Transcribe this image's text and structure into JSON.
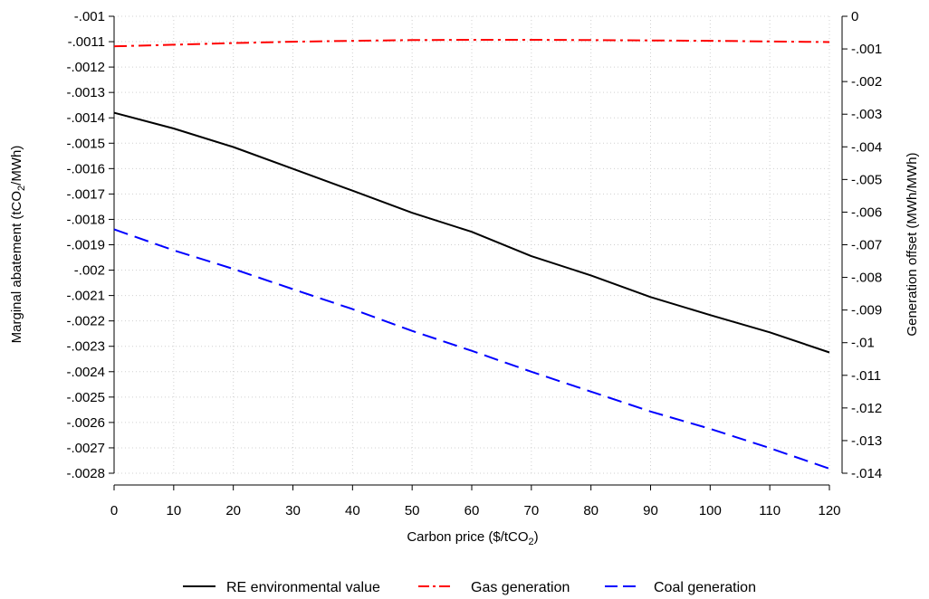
{
  "chart_data": {
    "type": "line",
    "x": [
      0,
      10,
      20,
      30,
      40,
      50,
      60,
      70,
      80,
      90,
      100,
      110,
      120
    ],
    "x_tick_labels": [
      "0",
      "10",
      "20",
      "30",
      "40",
      "50",
      "60",
      "70",
      "80",
      "90",
      "100",
      "110",
      "120"
    ],
    "xlabel": "Carbon price ($/tCO",
    "xlabel_subscript": "2",
    "xlabel_suffix": ")",
    "ylabel_left_parts": [
      "Marginal abatement (tCO",
      "2",
      "/MWh)"
    ],
    "ylabel_right": "Generation offset (MWh/MWh)",
    "y_left": {
      "range": [
        -0.0028,
        -0.001
      ],
      "ticks": [
        -0.001,
        -0.0011,
        -0.0012,
        -0.0013,
        -0.0014,
        -0.0015,
        -0.0016,
        -0.0017,
        -0.0018,
        -0.0019,
        -0.002,
        -0.0021,
        -0.0022,
        -0.0023,
        -0.0024,
        -0.0025,
        -0.0026,
        -0.0027,
        -0.0028
      ],
      "tick_labels": [
        "-.001",
        "-.0011",
        "-.0012",
        "-.0013",
        "-.0014",
        "-.0015",
        "-.0016",
        "-.0017",
        "-.0018",
        "-.0019",
        "-.002",
        "-.0021",
        "-.0022",
        "-.0023",
        "-.0024",
        "-.0025",
        "-.0026",
        "-.0027",
        "-.0028"
      ]
    },
    "y_right": {
      "range": [
        -0.014,
        0
      ],
      "ticks": [
        0,
        -0.001,
        -0.002,
        -0.003,
        -0.004,
        -0.005,
        -0.006,
        -0.007,
        -0.008,
        -0.009,
        -0.01,
        -0.011,
        -0.012,
        -0.013,
        -0.014
      ],
      "tick_labels": [
        "0",
        "-.001",
        "-.002",
        "-.003",
        "-.004",
        "-.005",
        "-.006",
        "-.007",
        "-.008",
        "-.009",
        "-.01",
        "-.011",
        "-.012",
        "-.013",
        "-.014"
      ]
    },
    "grid": true,
    "legend_position": "bottom",
    "series": [
      {
        "name": "RE environmental value",
        "axis": "left",
        "color": "#000000",
        "dash": "solid",
        "values": [
          -0.00138,
          -0.001442,
          -0.001515,
          -0.001601,
          -0.001687,
          -0.001774,
          -0.001849,
          -0.001945,
          -0.002021,
          -0.002106,
          -0.002177,
          -0.002245,
          -0.002324
        ]
      },
      {
        "name": "Gas generation",
        "axis": "right",
        "color": "#ff0000",
        "dash": "dashdot",
        "values": [
          -0.00092,
          -0.00087,
          -0.00082,
          -0.00078,
          -0.00075,
          -0.00073,
          -0.00072,
          -0.00072,
          -0.00073,
          -0.00074,
          -0.00075,
          -0.00077,
          -0.00079
        ]
      },
      {
        "name": "Coal generation",
        "axis": "right",
        "color": "#0000ff",
        "dash": "dashed",
        "values": [
          -0.00653,
          -0.00717,
          -0.00774,
          -0.00836,
          -0.00897,
          -0.00964,
          -0.01025,
          -0.01089,
          -0.0115,
          -0.01211,
          -0.01264,
          -0.01323,
          -0.01386
        ]
      }
    ]
  }
}
